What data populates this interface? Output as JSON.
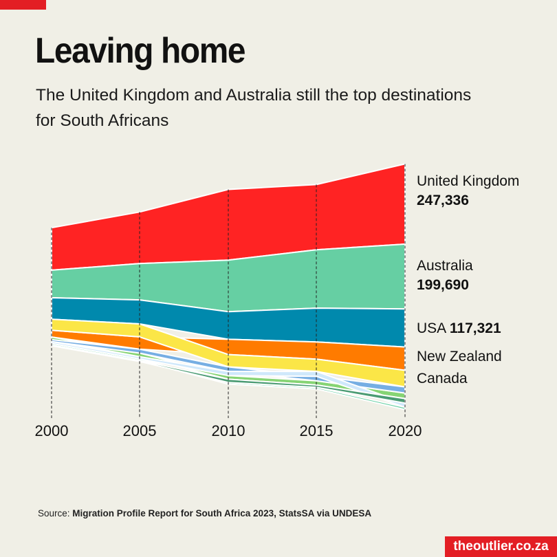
{
  "header": {
    "title": "Leaving home",
    "subtitle": "The United Kingdom and Australia still the top destinations for South Africans"
  },
  "chart_data": {
    "type": "area",
    "stacking": "centered-streamgraph-ranked",
    "x": [
      2000,
      2005,
      2010,
      2015,
      2020
    ],
    "series": [
      {
        "label": "United Kingdom",
        "value_label": "247,336",
        "color": "#ff2323",
        "values": [
          131000,
          159000,
          218000,
          201000,
          247336
        ]
      },
      {
        "label": "Australia",
        "value_label": "199,690",
        "color": "#66cfa3",
        "values": [
          85000,
          112000,
          159000,
          180000,
          199690
        ]
      },
      {
        "label": "USA",
        "value_label": "117,321",
        "color": "#0089ad",
        "values": [
          66000,
          74000,
          85000,
          104000,
          117321
        ]
      },
      {
        "label": "New Zealand",
        "value_label": null,
        "color": "#ff7b00",
        "values": [
          21000,
          38000,
          47000,
          53000,
          72000
        ]
      },
      {
        "label": "Canada",
        "value_label": null,
        "color": "#fbe647",
        "values": [
          34000,
          40000,
          38000,
          38000,
          51000
        ]
      },
      {
        "label": null,
        "color": "#86d474",
        "values": [
          8000,
          11000,
          11000,
          13000,
          17000
        ]
      },
      {
        "label": null,
        "color": "#76aee3",
        "values": [
          6000,
          12000,
          14000,
          14000,
          19000
        ]
      },
      {
        "label": null,
        "color": "#66cfa3",
        "values": [
          5000,
          5000,
          5000,
          5000,
          7000
        ]
      },
      {
        "label": null,
        "color": "#cfe8fb",
        "values": [
          6000,
          7000,
          13000,
          15000,
          13000
        ]
      },
      {
        "label": null,
        "color": "#4a9b73",
        "values": [
          2000,
          3000,
          10000,
          7000,
          14000
        ]
      }
    ],
    "xlabel": "",
    "ylabel": ""
  },
  "years": [
    "2000",
    "2005",
    "2010",
    "2015",
    "2020"
  ],
  "source": {
    "prefix": "Source:",
    "text": "Migration Profile Report for South Africa 2023, StatsSA via UNDESA"
  },
  "brand": "theoutlier.co.za"
}
